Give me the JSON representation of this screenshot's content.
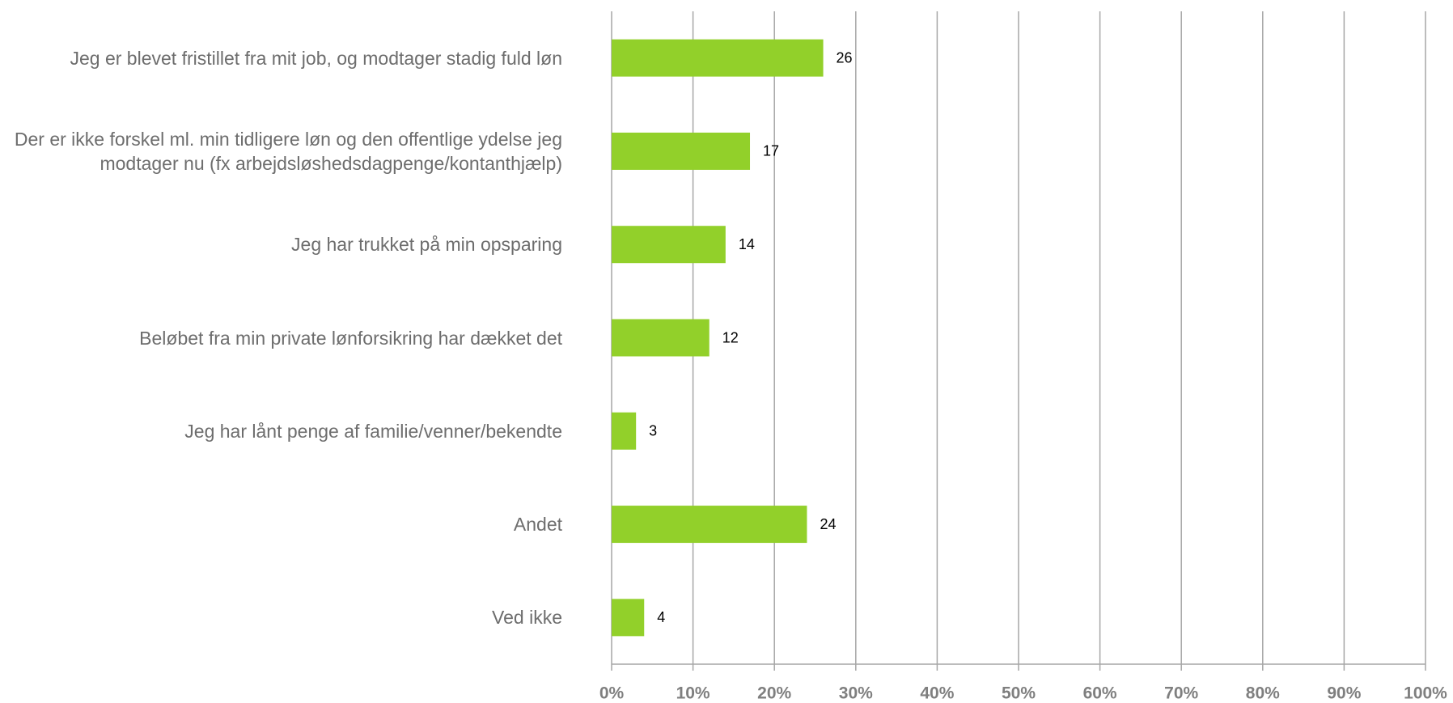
{
  "chart_data": {
    "type": "barh",
    "categories": [
      "Jeg er blevet fristillet fra mit job, og modtager stadig fuld løn",
      "Der er ikke forskel ml. min tidligere løn og den offentlige ydelse jeg modtager nu (fx arbejdsløshedsdagpenge/kontanthjælp)",
      "Jeg har trukket på min opsparing",
      "Beløbet fra min private lønforsikring har dækket det",
      "Jeg har lånt penge af familie/venner/bekendte",
      "Andet",
      "Ved ikke"
    ],
    "values": [
      26,
      17,
      14,
      12,
      3,
      24,
      4
    ],
    "color": "#92d02a",
    "xlim": [
      0,
      100
    ],
    "xticks": [
      {
        "value": 0,
        "label": "0%"
      },
      {
        "value": 10,
        "label": "10%"
      },
      {
        "value": 20,
        "label": "20%"
      },
      {
        "value": 30,
        "label": "30%"
      },
      {
        "value": 40,
        "label": "40%"
      },
      {
        "value": 50,
        "label": "50%"
      },
      {
        "value": 60,
        "label": "60%"
      },
      {
        "value": 70,
        "label": "70%"
      },
      {
        "value": 80,
        "label": "80%"
      },
      {
        "value": 90,
        "label": "90%"
      },
      {
        "value": 100,
        "label": "100%"
      }
    ],
    "grid": true
  }
}
